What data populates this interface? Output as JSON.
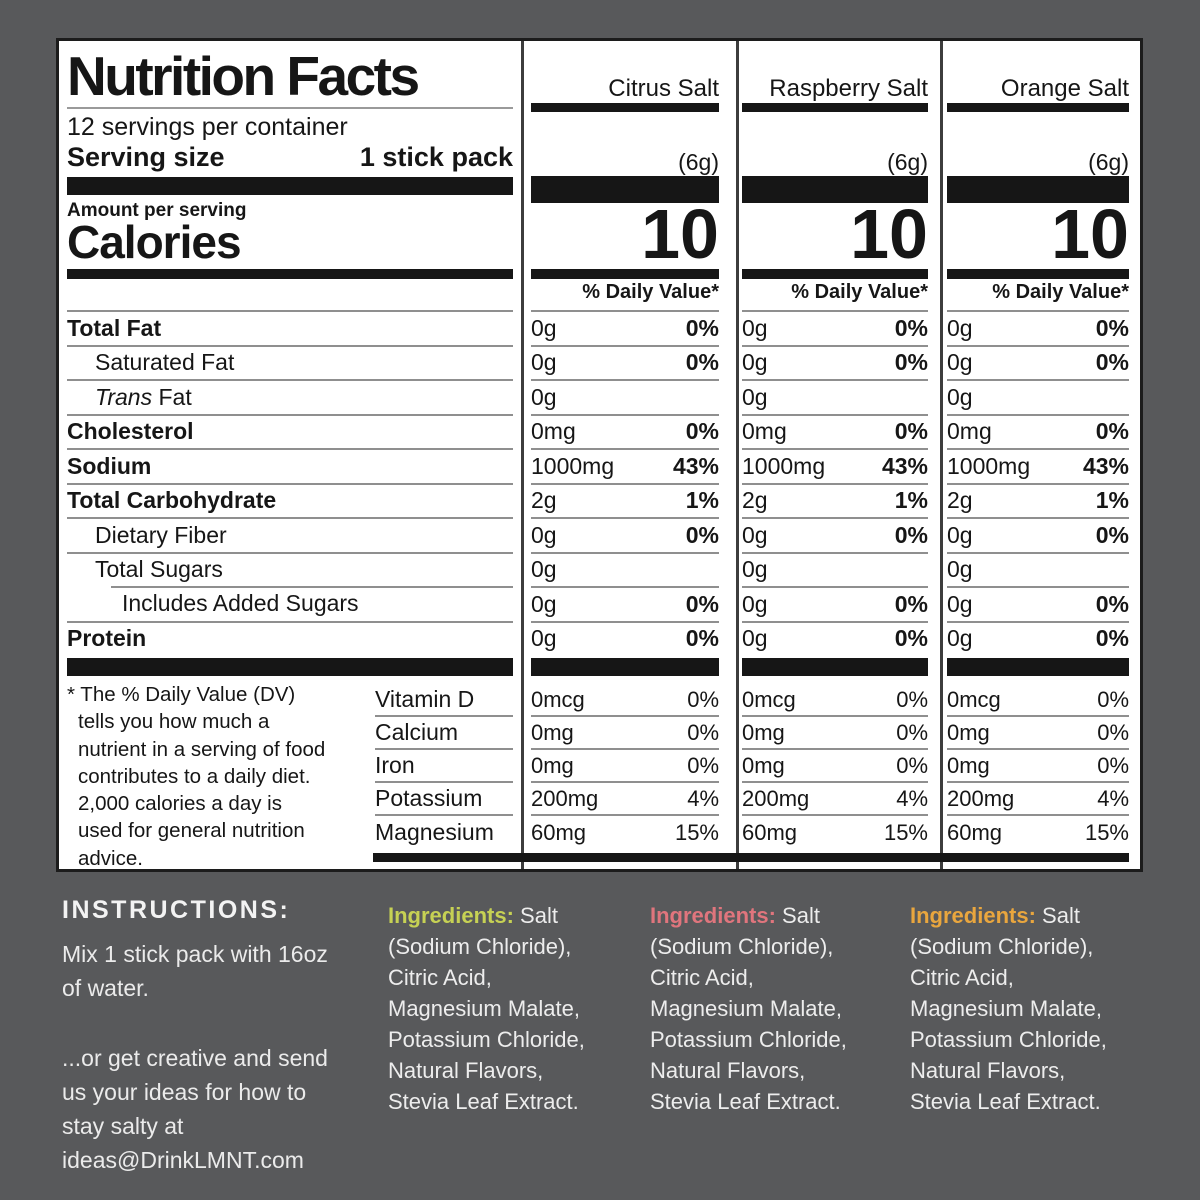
{
  "colors": {
    "background": "#58595b",
    "panel": "#ffffff",
    "ink": "#161616",
    "row_rule": "#8f8f8f",
    "column_divider": "#3d3d3d",
    "citrus_accent": "#c6d154",
    "raspberry_accent": "#e0757d",
    "orange_accent": "#e9a63e"
  },
  "label": {
    "title": "Nutrition Facts",
    "servings_per_container": "12 servings per container",
    "serving_size_label": "Serving size",
    "serving_size_value": "1 stick pack",
    "amount_per_serving": "Amount per serving",
    "calories_label": "Calories",
    "daily_value_header": "% Daily Value*",
    "flavors": [
      {
        "name": "Citrus Salt",
        "serving_weight": "(6g)",
        "calories": "10"
      },
      {
        "name": "Raspberry Salt",
        "serving_weight": "(6g)",
        "calories": "10"
      },
      {
        "name": "Orange Salt",
        "serving_weight": "(6g)",
        "calories": "10"
      }
    ],
    "nutrients": [
      {
        "label": "Total Fat",
        "bold": true,
        "indent": 0,
        "values": [
          [
            "0g",
            "0%"
          ],
          [
            "0g",
            "0%"
          ],
          [
            "0g",
            "0%"
          ]
        ]
      },
      {
        "label": "Saturated Fat",
        "bold": false,
        "indent": 1,
        "values": [
          [
            "0g",
            "0%"
          ],
          [
            "0g",
            "0%"
          ],
          [
            "0g",
            "0%"
          ]
        ]
      },
      {
        "label": "Trans Fat",
        "bold": false,
        "indent": 1,
        "italic_first": true,
        "values": [
          [
            "0g",
            ""
          ],
          [
            "0g",
            ""
          ],
          [
            "0g",
            ""
          ]
        ]
      },
      {
        "label": "Cholesterol",
        "bold": true,
        "indent": 0,
        "values": [
          [
            "0mg",
            "0%"
          ],
          [
            "0mg",
            "0%"
          ],
          [
            "0mg",
            "0%"
          ]
        ]
      },
      {
        "label": "Sodium",
        "bold": true,
        "indent": 0,
        "values": [
          [
            "1000mg",
            "43%"
          ],
          [
            "1000mg",
            "43%"
          ],
          [
            "1000mg",
            "43%"
          ]
        ]
      },
      {
        "label": "Total Carbohydrate",
        "bold": true,
        "indent": 0,
        "values": [
          [
            "2g",
            "1%"
          ],
          [
            "2g",
            "1%"
          ],
          [
            "2g",
            "1%"
          ]
        ]
      },
      {
        "label": "Dietary Fiber",
        "bold": false,
        "indent": 1,
        "values": [
          [
            "0g",
            "0%"
          ],
          [
            "0g",
            "0%"
          ],
          [
            "0g",
            "0%"
          ]
        ]
      },
      {
        "label": "Total Sugars",
        "bold": false,
        "indent": 1,
        "values": [
          [
            "0g",
            ""
          ],
          [
            "0g",
            ""
          ],
          [
            "0g",
            ""
          ]
        ]
      },
      {
        "label": "Includes Added Sugars",
        "bold": false,
        "indent": 2,
        "rule_indent": true,
        "values": [
          [
            "0g",
            "0%"
          ],
          [
            "0g",
            "0%"
          ],
          [
            "0g",
            "0%"
          ]
        ]
      },
      {
        "label": "Protein",
        "bold": true,
        "indent": 0,
        "values": [
          [
            "0g",
            "0%"
          ],
          [
            "0g",
            "0%"
          ],
          [
            "0g",
            "0%"
          ]
        ]
      }
    ],
    "vitamins": [
      {
        "label": "Vitamin D",
        "values": [
          [
            "0mcg",
            "0%"
          ],
          [
            "0mcg",
            "0%"
          ],
          [
            "0mcg",
            "0%"
          ]
        ]
      },
      {
        "label": "Calcium",
        "values": [
          [
            "0mg",
            "0%"
          ],
          [
            "0mg",
            "0%"
          ],
          [
            "0mg",
            "0%"
          ]
        ]
      },
      {
        "label": "Iron",
        "values": [
          [
            "0mg",
            "0%"
          ],
          [
            "0mg",
            "0%"
          ],
          [
            "0mg",
            "0%"
          ]
        ]
      },
      {
        "label": "Potassium",
        "values": [
          [
            "200mg",
            "4%"
          ],
          [
            "200mg",
            "4%"
          ],
          [
            "200mg",
            "4%"
          ]
        ]
      },
      {
        "label": "Magnesium",
        "values": [
          [
            "60mg",
            "15%"
          ],
          [
            "60mg",
            "15%"
          ],
          [
            "60mg",
            "15%"
          ]
        ]
      }
    ],
    "footnote": "* The % Daily Value (DV) tells you how much a nutrient in a serving of food contributes to a daily diet. 2,000 calories a day is used for general nutrition advice."
  },
  "footer": {
    "instructions_title": "INSTRUCTIONS:",
    "instructions_lines": [
      "Mix 1 stick pack with 16oz of water.",
      "...or get creative and send us your ideas for how to stay salty at ideas@DrinkLMNT.com"
    ],
    "ingredients_columns": [
      {
        "label": "Ingredients:",
        "accent": "#c6d154",
        "text": "Salt (Sodium Chloride), Citric Acid, Magnesium Malate, Potassium Chloride, Natural Flavors, Stevia Leaf Extract."
      },
      {
        "label": "Ingredients:",
        "accent": "#e0757d",
        "text": "Salt (Sodium Chloride), Citric Acid, Magnesium Malate, Potassium Chloride, Natural Flavors, Stevia Leaf Extract."
      },
      {
        "label": "Ingredients:",
        "accent": "#e9a63e",
        "text": "Salt (Sodium Chloride), Citric Acid, Magnesium Malate, Potassium Chloride, Natural Flavors, Stevia Leaf Extract."
      }
    ]
  }
}
